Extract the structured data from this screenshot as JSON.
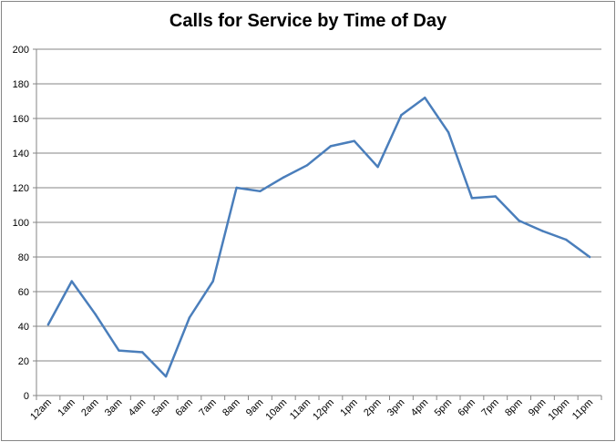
{
  "chart_data": {
    "type": "line",
    "title": "Calls for Service by Time of Day",
    "xlabel": "",
    "ylabel": "",
    "categories": [
      "12am",
      "1am",
      "2am",
      "3am",
      "4am",
      "5am",
      "6am",
      "7am",
      "8am",
      "9am",
      "10am",
      "11am",
      "12pm",
      "1pm",
      "2pm",
      "3pm",
      "4pm",
      "5pm",
      "6pm",
      "7pm",
      "8pm",
      "9pm",
      "10pm",
      "11pm"
    ],
    "series": [
      {
        "values": [
          41,
          66,
          47,
          26,
          25,
          11,
          45,
          66,
          120,
          118,
          126,
          133,
          144,
          147,
          132,
          162,
          172,
          152,
          114,
          115,
          101,
          95,
          90,
          80
        ],
        "color": "#4a7ebb"
      }
    ],
    "ylim": [
      0,
      200
    ],
    "yticks": [
      0,
      20,
      40,
      60,
      80,
      100,
      120,
      140,
      160,
      180,
      200
    ],
    "grid": true,
    "legend": "none"
  }
}
